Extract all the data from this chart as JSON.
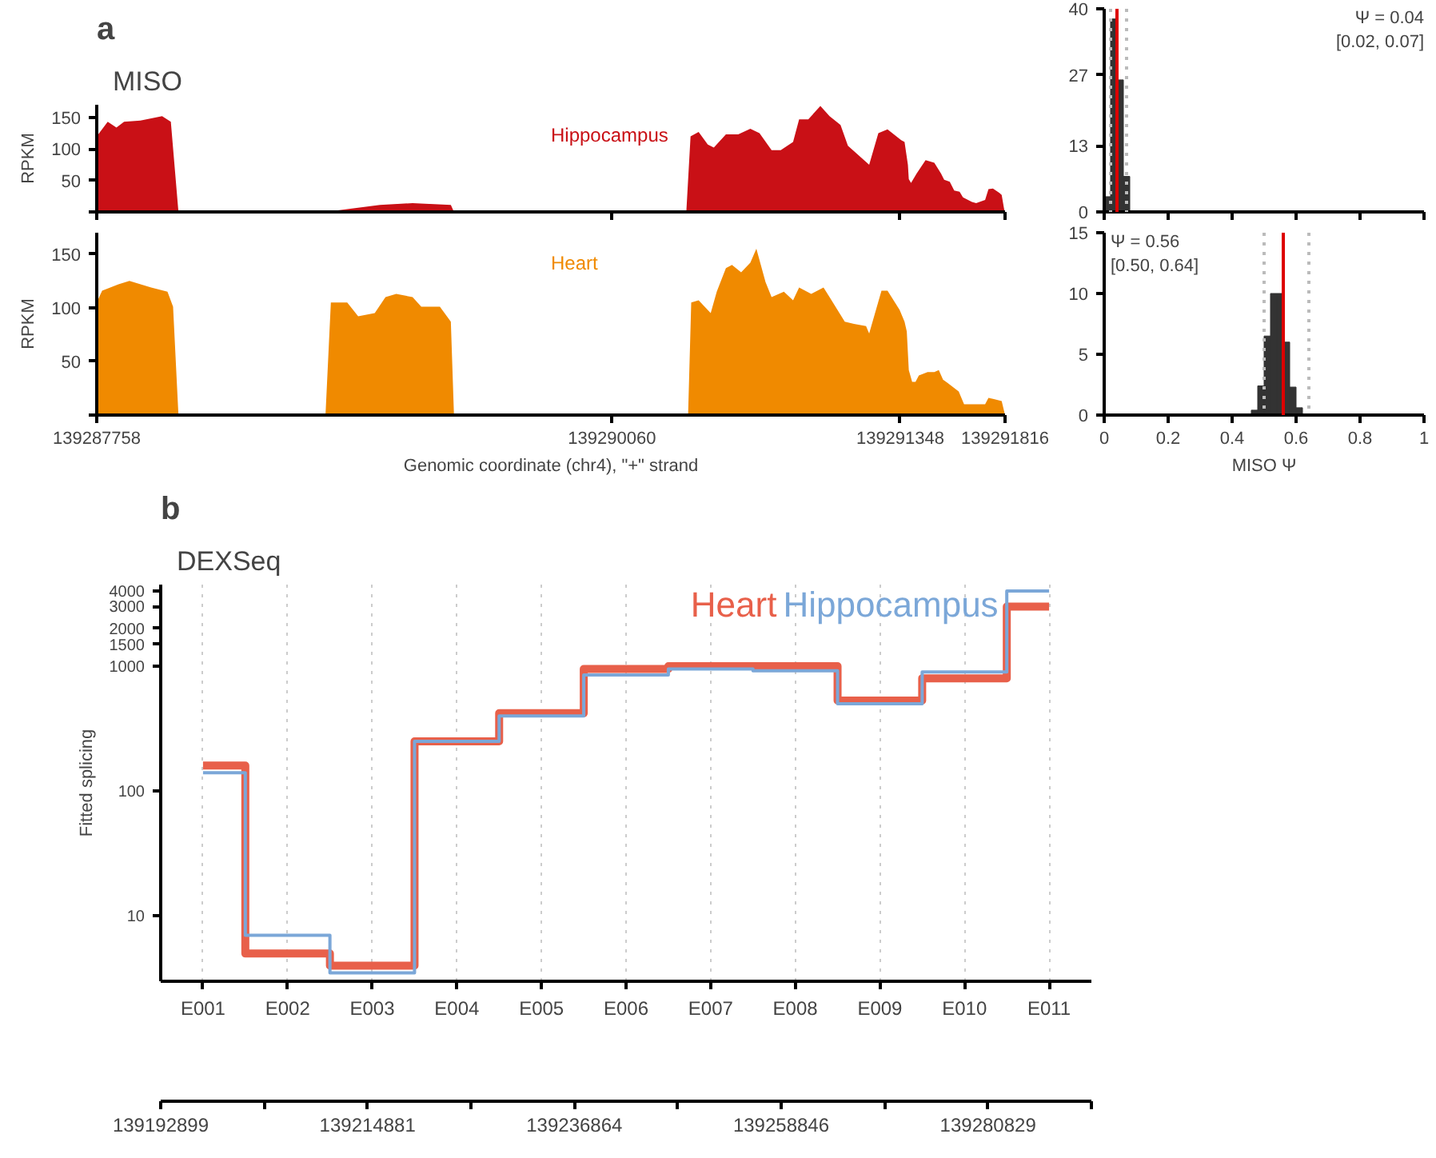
{
  "chart_data": [
    {
      "type": "area",
      "title": "MISO",
      "annotations": [
        "a"
      ],
      "ylabel": "RPKM",
      "tick_labels": "y",
      "xlim": [
        139287758,
        139291816
      ],
      "xticks": [
        {
          "value": 139287758,
          "label": null
        },
        {
          "value": 139290060,
          "label": null
        },
        {
          "value": 139291348,
          "label": null
        },
        {
          "value": 139291816,
          "label": null
        }
      ],
      "ylim": [
        0,
        170
      ],
      "yticks": [
        {
          "value": 0,
          "label": null
        },
        50,
        100,
        150
      ],
      "series": [
        {
          "name": "Hippocampus",
          "color": "#c91016",
          "x": [
            139287758,
            139287807,
            139287846,
            139287880,
            139287953,
            139288050,
            139288089,
            139288123,
            139288780,
            139289023,
            139289169,
            139289340,
            139289354,
            139290392,
            139290411,
            139290447,
            139290488,
            139290515,
            139290569,
            139290624,
            139290678,
            139290719,
            139290773,
            139290814,
            139290869,
            139290896,
            139290937,
            139290991,
            139291032,
            139291081,
            139291114,
            139291209,
            139291250,
            139291291,
            139291352,
            139291367,
            139291382,
            139291386,
            139291396,
            139291421,
            139291461,
            139291500,
            139291530,
            139291544,
            139291569,
            139291589,
            139291613,
            139291628,
            139291668,
            139291687,
            139291727,
            139291742,
            139291762,
            139291791,
            139291801,
            139291814
          ],
          "values": [
            120,
            143,
            134,
            143,
            145,
            152,
            143,
            0,
            0,
            11,
            14,
            11,
            0,
            0,
            120,
            127,
            107,
            102,
            123,
            123,
            132,
            125,
            98,
            98,
            111,
            147,
            147,
            168,
            152,
            138,
            105,
            75,
            125,
            131,
            114,
            111,
            75,
            52,
            46,
            61,
            82,
            78,
            61,
            51,
            48,
            34,
            32,
            23,
            16,
            14,
            19,
            36,
            37,
            30,
            27,
            0
          ]
        }
      ]
    },
    {
      "type": "histogram",
      "tick_labels": "y",
      "annotations": [
        "Ψ = 0.04",
        "[0.02, 0.07]"
      ],
      "xlim": [
        0,
        1
      ],
      "xticks": [
        {
          "value": 0,
          "label": null
        },
        {
          "value": 0.2,
          "label": null
        },
        {
          "value": 0.4,
          "label": null
        },
        {
          "value": 0.6,
          "label": null
        },
        {
          "value": 0.8,
          "label": null
        },
        {
          "value": 1,
          "label": null
        }
      ],
      "ylim": [
        0,
        40
      ],
      "yticks": [
        0,
        13,
        27,
        40
      ],
      "color": "#333333",
      "bins": [
        0,
        0.02,
        0.04,
        0.06,
        0.08
      ],
      "values": [
        3,
        38,
        26,
        7
      ],
      "ref_lines": [
        {
          "axis": "x",
          "value": 0.02,
          "color": "#bbbbbb",
          "line_style": "dotted"
        },
        {
          "axis": "x",
          "value": 0.07,
          "color": "#bbbbbb",
          "line_style": "dotted"
        },
        {
          "axis": "x",
          "value": 0.04,
          "color": "#dd0000",
          "line_style": "solid"
        }
      ]
    },
    {
      "type": "area",
      "ylabel": "RPKM",
      "xlabel": "Genomic coordinate (chr4), \"+\" strand",
      "xlim": [
        139287758,
        139291816
      ],
      "xticks": [
        139287758,
        139290060,
        139291348,
        139291816
      ],
      "ylim": [
        0,
        170
      ],
      "yticks": [
        {
          "value": 0,
          "label": null
        },
        50,
        100,
        150
      ],
      "series": [
        {
          "name": "Heart",
          "color": "#f08a00",
          "x": [
            139287758,
            139287782,
            139287855,
            139287904,
            139288001,
            139288074,
            139288099,
            139288123,
            139288780,
            139288804,
            139288877,
            139288926,
            139289000,
            139289048,
            139289096,
            139289169,
            139289208,
            139289291,
            139289340,
            139289354,
            139290400,
            139290414,
            139290447,
            139290501,
            139290528,
            139290569,
            139290596,
            139290637,
            139290678,
            139290705,
            139290746,
            139290773,
            139290828,
            139290869,
            139290896,
            139290950,
            139291005,
            139291032,
            139291100,
            139291141,
            139291195,
            139291209,
            139291264,
            139291291,
            139291345,
            139291367,
            139291377,
            139291386,
            139291401,
            139291416,
            139291431,
            139291470,
            139291500,
            139291520,
            139291539,
            139291559,
            139291609,
            139291633,
            139291668,
            139291727,
            139291742,
            139291766,
            139291801,
            139291816
          ],
          "values": [
            105,
            116,
            122,
            125,
            119,
            115,
            101,
            0,
            0,
            105,
            105,
            92,
            95,
            110,
            113,
            110,
            101,
            101,
            87,
            0,
            0,
            105,
            107,
            95,
            115,
            137,
            140,
            133,
            142,
            155,
            124,
            110,
            115,
            107,
            119,
            113,
            119,
            110,
            87,
            85,
            83,
            76,
            116,
            116,
            98,
            87,
            78,
            42,
            31,
            31,
            37,
            40,
            40,
            42,
            33,
            30,
            22,
            10,
            10,
            10,
            16,
            15,
            13,
            0
          ]
        }
      ]
    },
    {
      "type": "histogram",
      "xlabel": "MISO Ψ",
      "xlim": [
        0,
        1
      ],
      "xticks": [
        0,
        0.2,
        0.4,
        0.6,
        0.8,
        1
      ],
      "ylim": [
        0,
        15
      ],
      "yticks": [
        0,
        5,
        10,
        15
      ],
      "color": "#333333",
      "annotations": [
        "Ψ = 0.56",
        "[0.50, 0.64]"
      ],
      "bins": [
        0.46,
        0.48,
        0.5,
        0.52,
        0.54,
        0.56,
        0.58,
        0.6,
        0.62,
        0.64
      ],
      "values": [
        0.4,
        2.4,
        6.5,
        10,
        10,
        6,
        2.3,
        0.6,
        0
      ],
      "ref_lines": [
        {
          "axis": "x",
          "value": 0.5,
          "color": "#bbbbbb",
          "line_style": "dotted"
        },
        {
          "axis": "x",
          "value": 0.64,
          "color": "#bbbbbb",
          "line_style": "dotted"
        },
        {
          "axis": "x",
          "value": 0.56,
          "color": "#dd0000",
          "line_style": "solid"
        }
      ]
    },
    {
      "type": "step",
      "title": "DEXSeq",
      "annotations": [
        "b"
      ],
      "ylabel": "Fitted splicing",
      "legend": "top right",
      "grid": "x",
      "categories": [
        "E001",
        "E002",
        "E003",
        "E004",
        "E005",
        "E006",
        "E007",
        "E008",
        "E009",
        "E010",
        "E011"
      ],
      "log": true,
      "ylim": [
        3,
        4500
      ],
      "yticks": [
        10,
        100,
        1000,
        1500,
        2000,
        3000,
        4000
      ],
      "series": [
        {
          "name": "Heart",
          "color": "#e8604a",
          "values": [
            160,
            5,
            4,
            250,
            420,
            950,
            1000,
            1000,
            530,
            800,
            3000
          ]
        },
        {
          "name": "Hippocampus",
          "color": "#7ba7d8",
          "values": [
            140,
            7,
            3.5,
            250,
            400,
            850,
            950,
            920,
            500,
            900,
            4000
          ]
        }
      ]
    },
    {
      "type": "other",
      "annotations": [
        "139192899",
        "139214881",
        "139236864",
        "139258846",
        "139280829"
      ]
    }
  ]
}
